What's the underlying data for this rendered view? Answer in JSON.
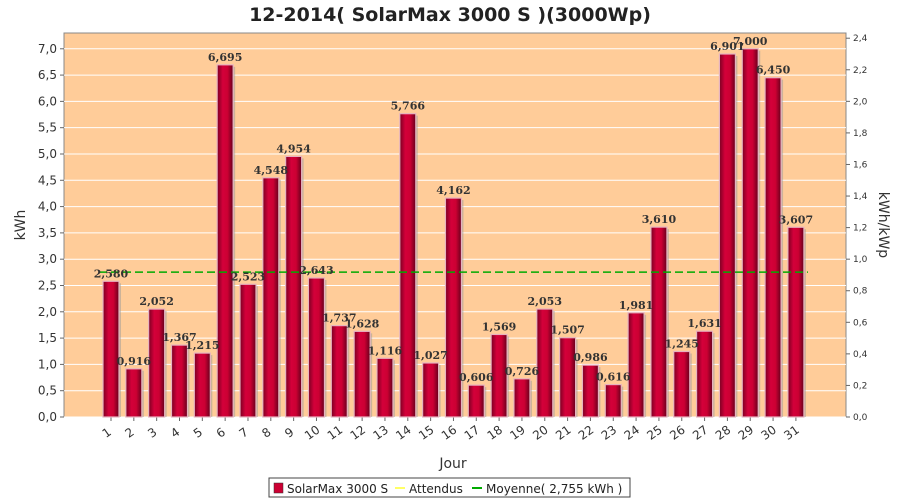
{
  "chart_data": {
    "type": "bar",
    "title": "12-2014( SolarMax 3000 S )(3000Wp)",
    "xlabel": "Jour",
    "ylabel": "kWh",
    "ylabel_right": "kWh/kWp",
    "ylim": [
      0,
      7.3
    ],
    "ylim_right": [
      0,
      2.433
    ],
    "yticks": [
      "0,0",
      "0,5",
      "1,0",
      "1,5",
      "2,0",
      "2,5",
      "3,0",
      "3,5",
      "4,0",
      "4,5",
      "5,0",
      "5,5",
      "6,0",
      "6,5",
      "7,0"
    ],
    "yticks_right": [
      "0,0",
      "0,2",
      "0,4",
      "0,6",
      "0,8",
      "1,0",
      "1,2",
      "1,4",
      "1,6",
      "1,8",
      "2,0",
      "2,2",
      "2,4"
    ],
    "categories": [
      "1",
      "2",
      "3",
      "4",
      "5",
      "6",
      "7",
      "8",
      "9",
      "10",
      "11",
      "12",
      "13",
      "14",
      "15",
      "16",
      "17",
      "18",
      "19",
      "20",
      "21",
      "22",
      "23",
      "24",
      "25",
      "26",
      "27",
      "28",
      "29",
      "30",
      "31"
    ],
    "series": [
      {
        "name": "SolarMax 3000 S",
        "color": "#cc0033",
        "values": [
          2.58,
          0.916,
          2.052,
          1.367,
          1.215,
          6.695,
          2.523,
          4.548,
          4.954,
          2.643,
          1.737,
          1.628,
          1.116,
          5.766,
          1.027,
          4.162,
          0.606,
          1.569,
          0.726,
          2.053,
          1.507,
          0.986,
          0.616,
          1.981,
          3.61,
          1.245,
          1.631,
          6.901,
          7.0,
          6.45,
          3.607
        ],
        "labels": [
          "2,580",
          "0,916",
          "2,052",
          "1,367",
          "1,215",
          "6,695",
          "2,523",
          "4,548",
          "4,954",
          "2,643",
          "1,737",
          "1,628",
          "1,116",
          "5,766",
          "1,027",
          "4,162",
          "0,606",
          "1,569",
          "0,726",
          "2,053",
          "1,507",
          "0,986",
          "0,616",
          "1,981",
          "3,610",
          "1,245",
          "1,631",
          "6,901",
          "7,000",
          "6,450",
          "3,607"
        ]
      }
    ],
    "average": {
      "name": "Moyenne( 2,755 kWh )",
      "value": 2.755,
      "color": "#00aa00"
    },
    "expected": {
      "name": "Attendus",
      "color": "#ffff66"
    },
    "legend": "bottom",
    "grid": true,
    "plot_background": "#ffcc99"
  }
}
